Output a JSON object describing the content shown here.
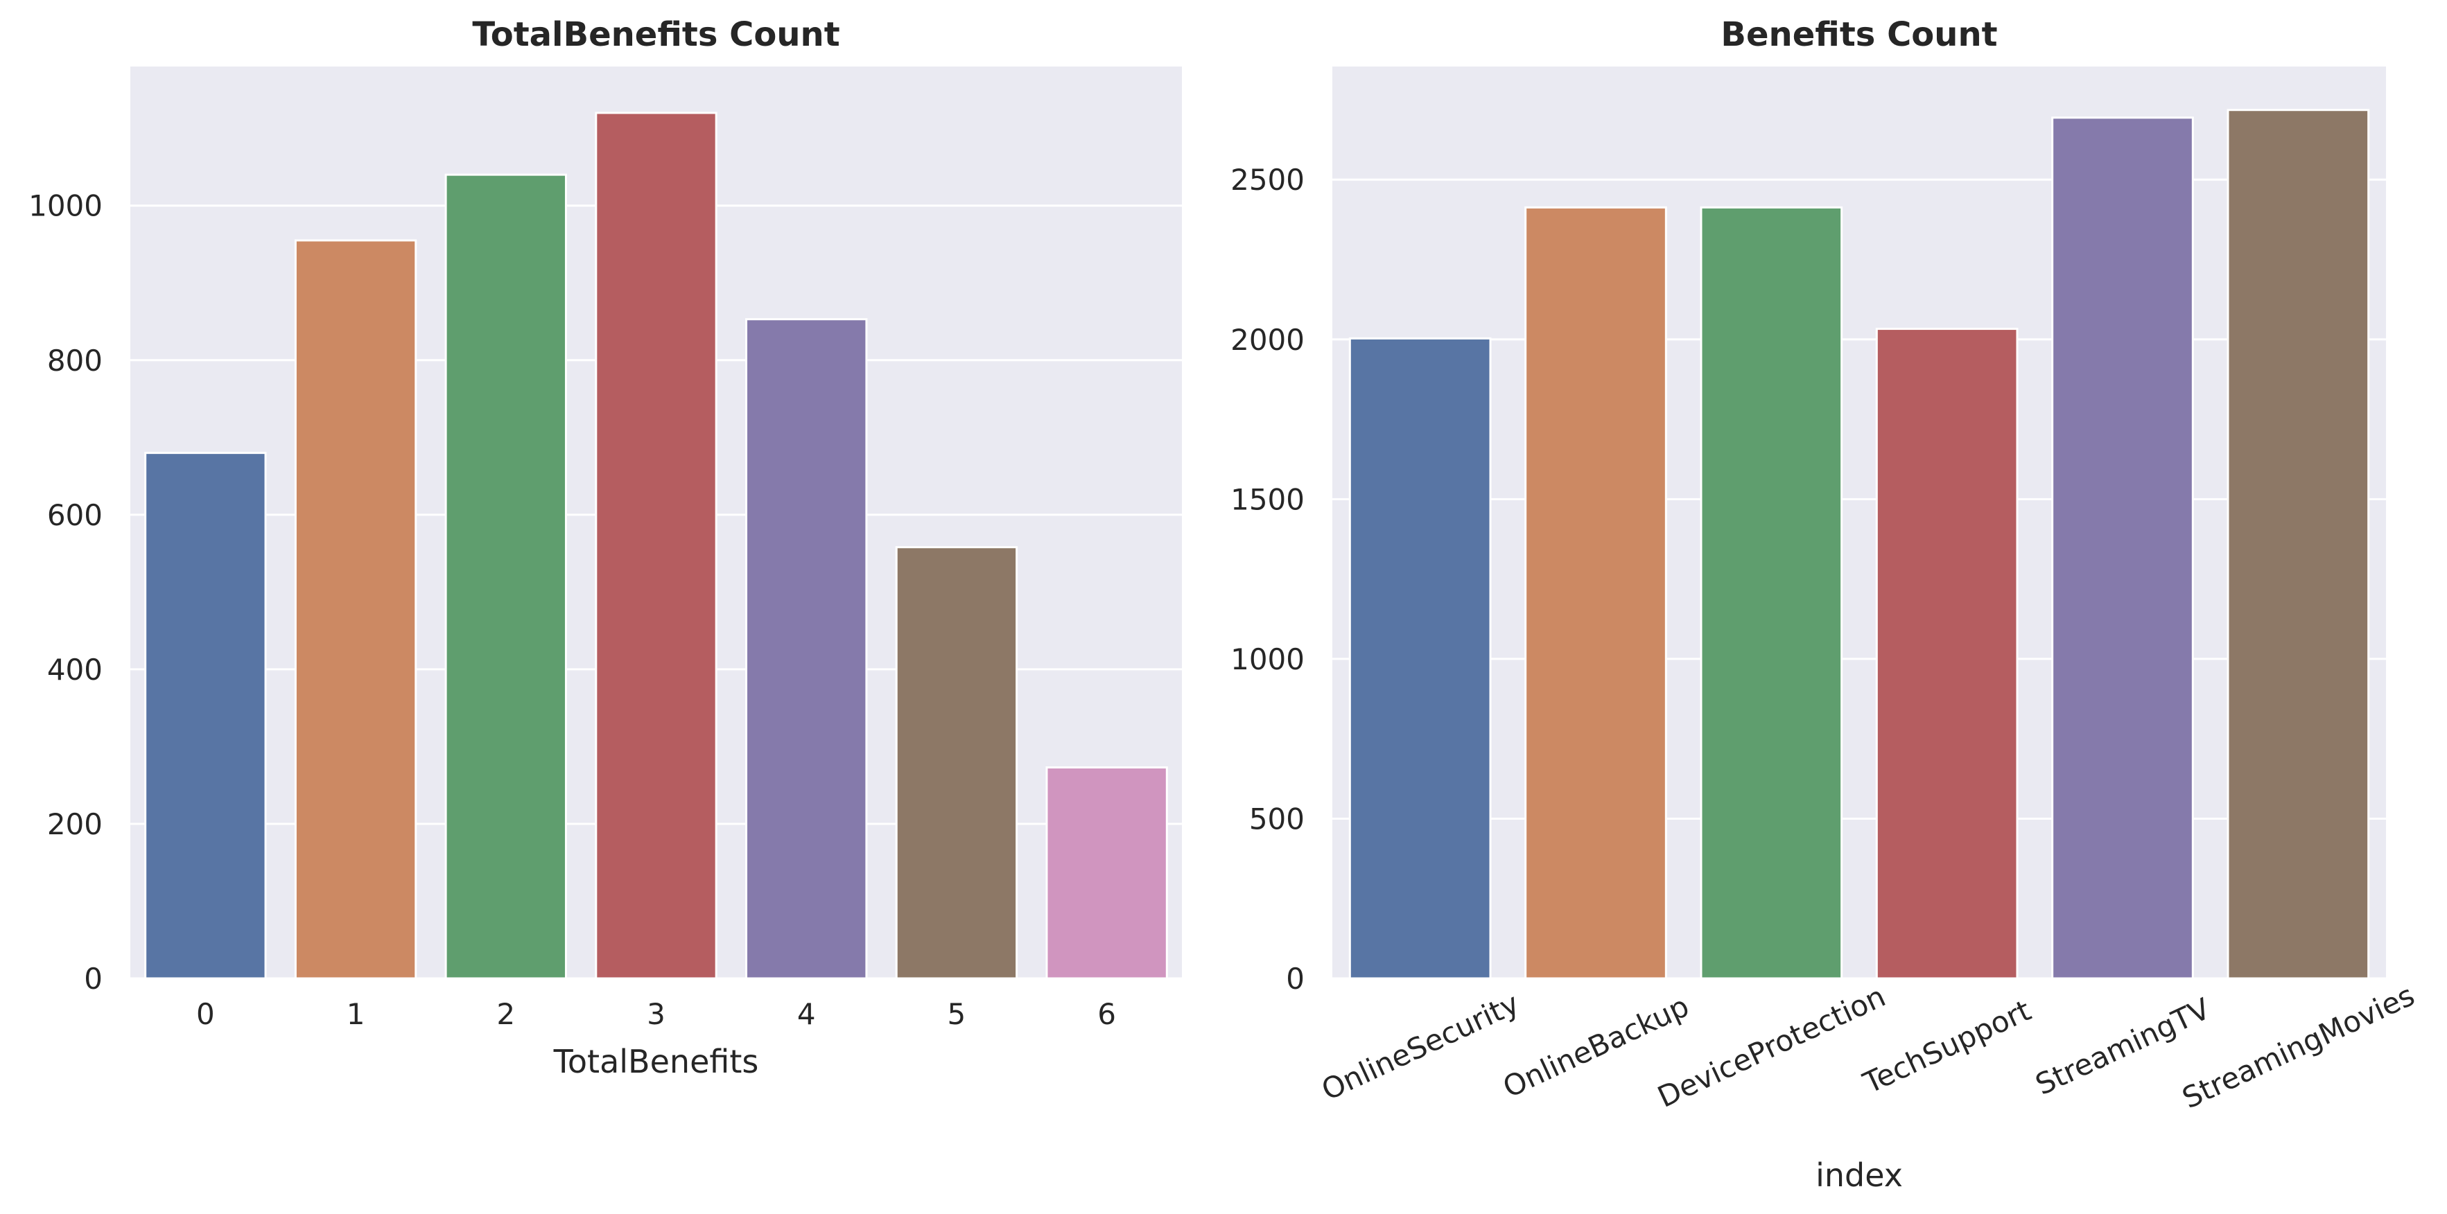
{
  "chart_data": [
    {
      "type": "bar",
      "title": "TotalBenefits Count",
      "xlabel": "TotalBenefits",
      "ylabel": "",
      "categories": [
        "0",
        "1",
        "2",
        "3",
        "4",
        "5",
        "6"
      ],
      "values": [
        680,
        955,
        1040,
        1120,
        853,
        558,
        273
      ],
      "colors": [
        "#5875a4",
        "#cc8963",
        "#5f9e6e",
        "#b55d60",
        "#857aab",
        "#8d7866",
        "#d095bf"
      ],
      "ylim": [
        0,
        1180
      ],
      "yticks": [
        0,
        200,
        400,
        600,
        800,
        1000
      ],
      "grid": true,
      "xtick_rotation": 0
    },
    {
      "type": "bar",
      "title": "Benefits Count",
      "xlabel": "index",
      "ylabel": "",
      "categories": [
        "OnlineSecurity",
        "OnlineBackup",
        "DeviceProtection",
        "TechSupport",
        "StreamingTV",
        "StreamingMovies"
      ],
      "values": [
        2003,
        2413,
        2413,
        2033,
        2694,
        2718
      ],
      "colors": [
        "#5875a4",
        "#cc8963",
        "#5f9e6e",
        "#b55d60",
        "#857aab",
        "#8d7866"
      ],
      "ylim": [
        0,
        2854
      ],
      "yticks": [
        0,
        500,
        1000,
        1500,
        2000,
        2500
      ],
      "grid": true,
      "xtick_rotation": -25
    }
  ]
}
